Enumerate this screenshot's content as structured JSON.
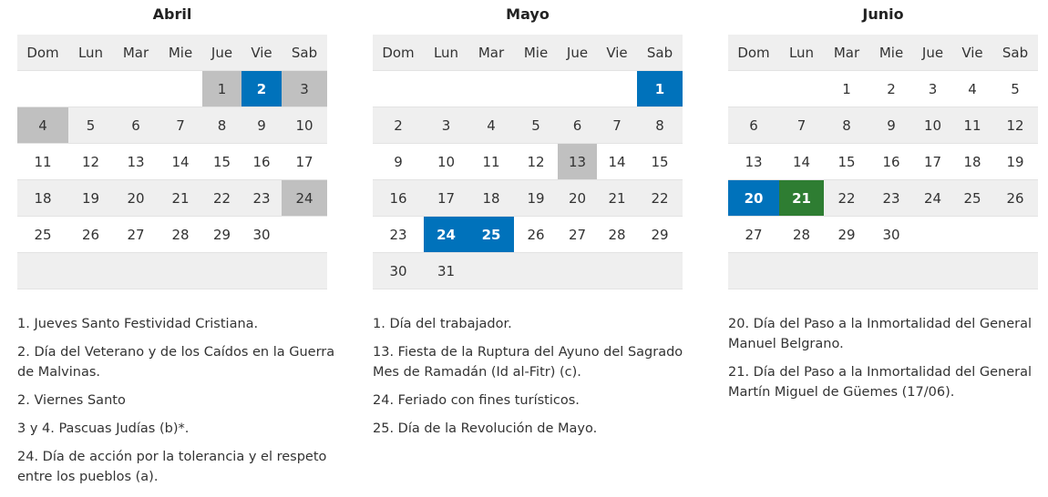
{
  "weekdays": [
    "Dom",
    "Lun",
    "Mar",
    "Mie",
    "Jue",
    "Vie",
    "Sab"
  ],
  "colors": {
    "gray": "#c0c0c0",
    "blue": "#0072bb",
    "green": "#2e7d32"
  },
  "months": [
    {
      "name": "Abril",
      "start": 4,
      "days": 30,
      "highlights": {
        "1": "gray",
        "2": "blue",
        "3": "gray",
        "4": "gray",
        "24": "gray"
      },
      "notes": [
        "1. Jueves Santo Festividad Cristiana.",
        "2. Día del Veterano y de los Caídos en la Guerra de Malvinas.",
        "2. Viernes Santo",
        "3 y 4. Pascuas Judías (b)*.",
        "24. Día de acción por la tolerancia y el respeto entre los pueblos (a)."
      ]
    },
    {
      "name": "Mayo",
      "start": 6,
      "days": 31,
      "highlights": {
        "1": "blue",
        "13": "gray",
        "24": "blue",
        "25": "blue"
      },
      "notes": [
        "1. Día del trabajador.",
        "13. Fiesta de la Ruptura del Ayuno del Sagrado Mes de Ramadán (Id al-Fitr) (c).",
        "24. Feriado con fines turísticos.",
        "25. Día de la Revolución de Mayo."
      ]
    },
    {
      "name": "Junio",
      "start": 2,
      "days": 30,
      "highlights": {
        "20": "blue",
        "21": "green"
      },
      "notes": [
        "20. Día del Paso a la Inmortalidad del General Manuel Belgrano.",
        "21. Día del Paso a la Inmortalidad del General Martín Miguel de Güemes (17/06)."
      ]
    }
  ]
}
